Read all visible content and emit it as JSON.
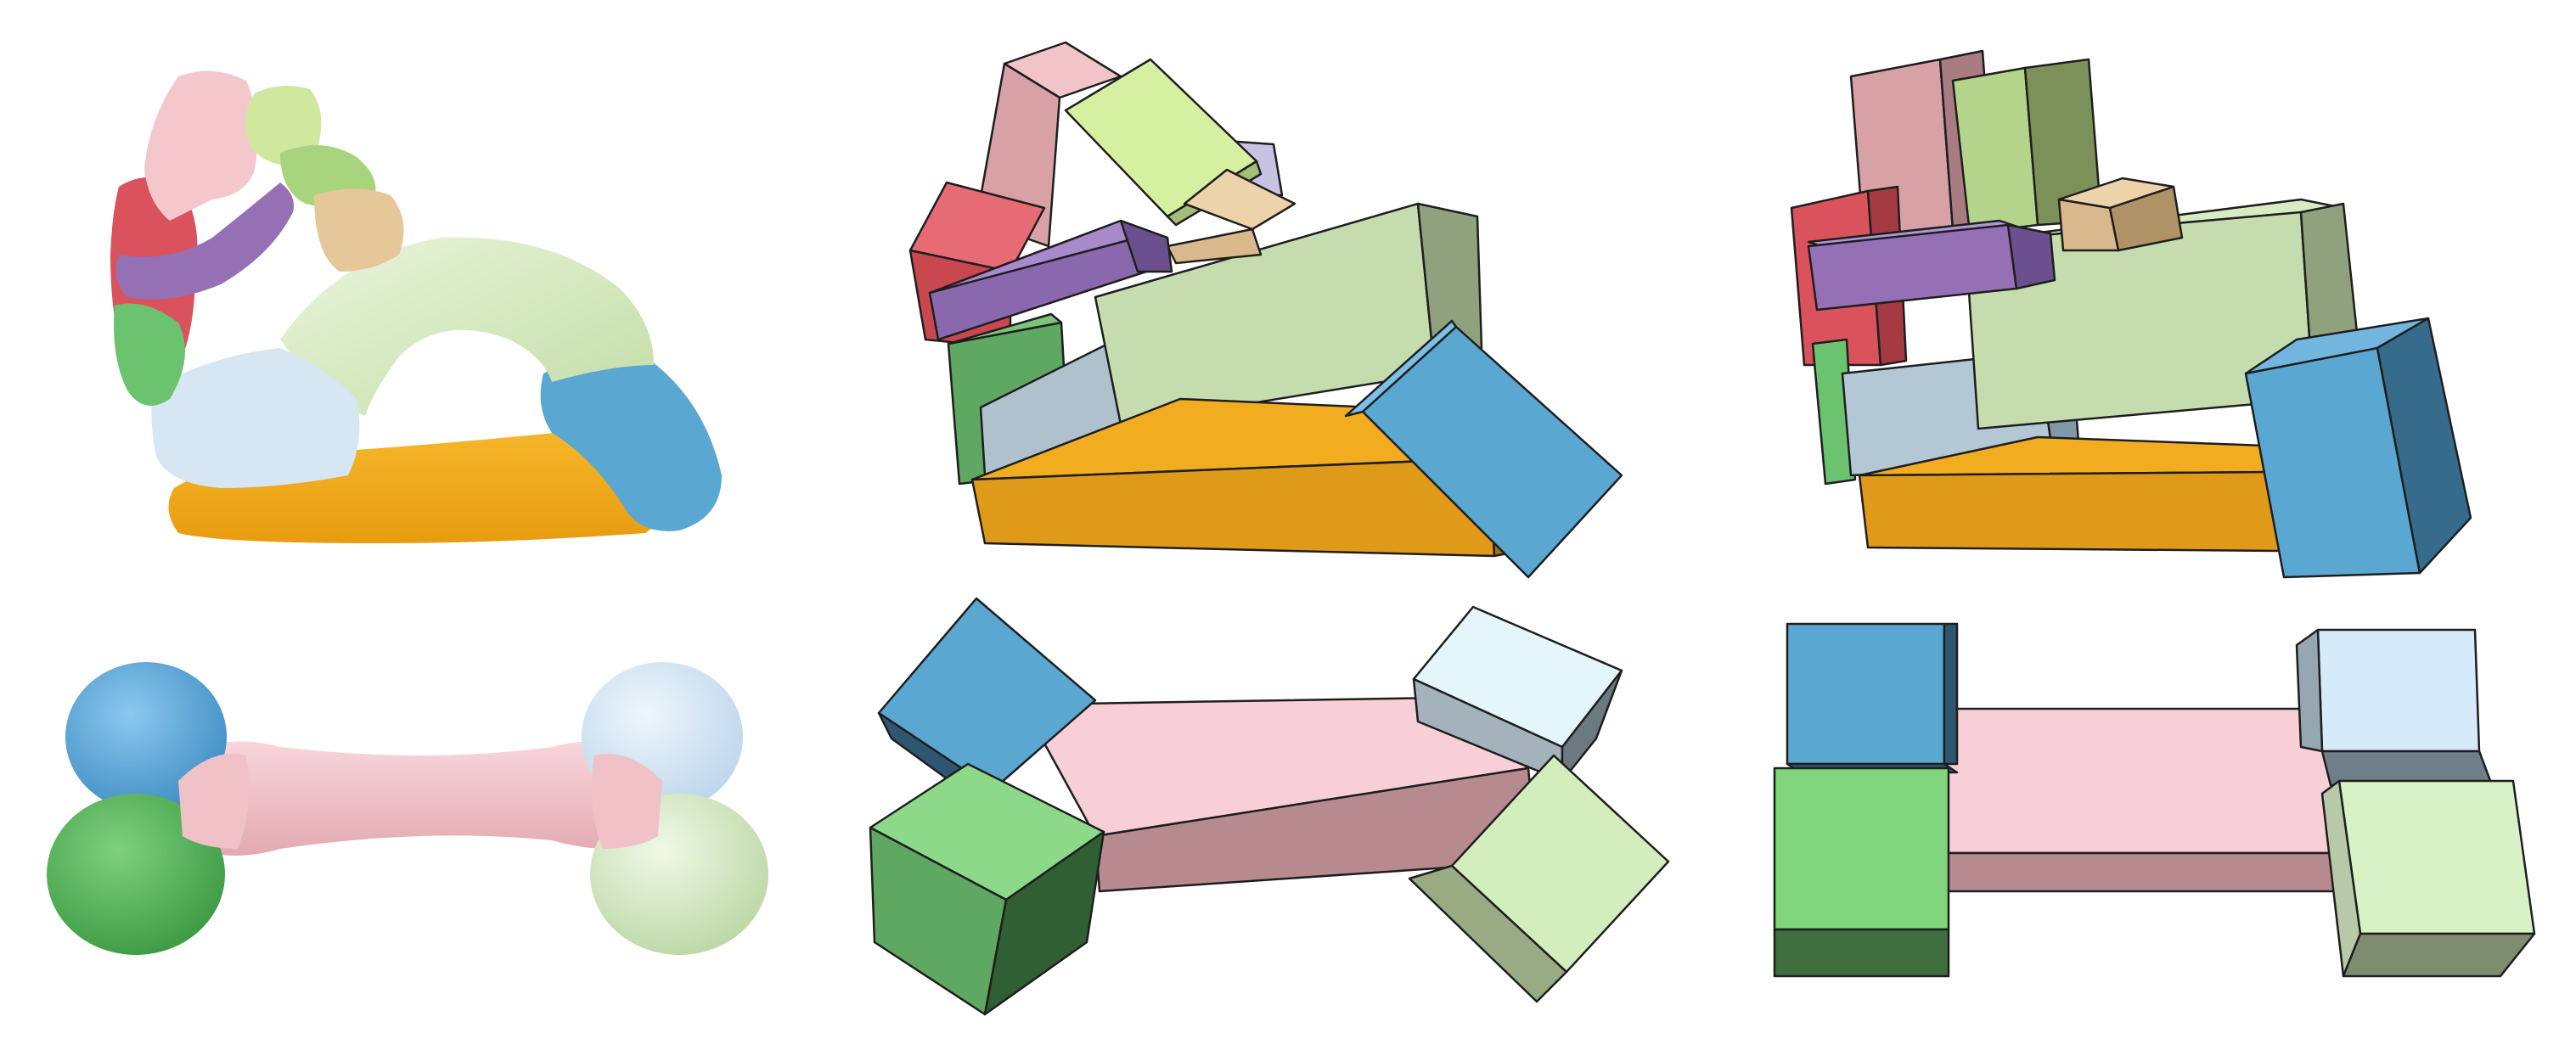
{
  "colors": {
    "pink": "#f4c7cd",
    "rose": "#d7a1a5",
    "red": "#d9525c",
    "purple": "#9670b4",
    "lime": "#cfe89d",
    "green_light": "#b9d79a",
    "tan": "#e6c79a",
    "sky": "#cfe6f4",
    "blue": "#5aa7d2",
    "blue_bright": "#6ab3e2",
    "green": "#6cc36f",
    "green_pale": "#d7edc3",
    "orange": "#f2ac1f",
    "outline": "#1e1e1e"
  },
  "panels": [
    {
      "id": "teddy-mesh",
      "kind": "segmented-mesh"
    },
    {
      "id": "teddy-boxes-unaligned",
      "kind": "box-abstraction"
    },
    {
      "id": "teddy-boxes-aligned",
      "kind": "box-abstraction"
    },
    {
      "id": "bone-mesh",
      "kind": "segmented-mesh"
    },
    {
      "id": "bone-boxes-unaligned",
      "kind": "box-abstraction"
    },
    {
      "id": "bone-boxes-aligned",
      "kind": "box-abstraction"
    }
  ]
}
